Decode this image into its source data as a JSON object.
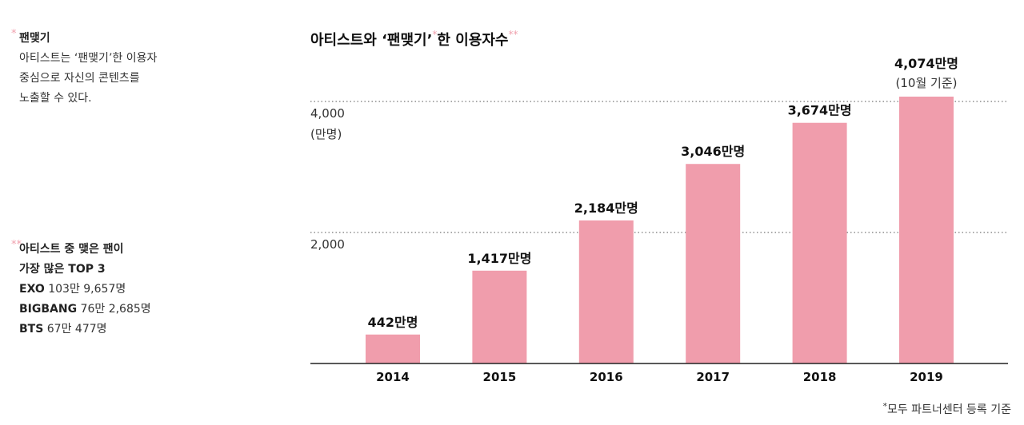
{
  "notes": {
    "fan_term": {
      "star": "*",
      "title": "팬맺기",
      "lines": [
        "아티스트는 ‘팬맺기’한 이용자",
        "중심으로 자신의 콘텐츠를",
        "노출할 수 있다."
      ]
    },
    "top3": {
      "star": "**",
      "title_lines": [
        "아티스트 중 맺은 팬이",
        "가장 많은 TOP 3"
      ],
      "items": [
        {
          "name": "EXO",
          "value": "103만 9,657명"
        },
        {
          "name": "BIGBANG",
          "value": "76만 2,685명"
        },
        {
          "name": "BTS",
          "value": "67만 477명"
        }
      ]
    }
  },
  "footnote": {
    "star": "*",
    "text": "모두 파트너센터 등록 기준"
  },
  "chart_data": {
    "type": "bar",
    "title_parts": {
      "before": "아티스트와 ‘팬맺기’",
      "star1": "*",
      "after": "한 이용자수",
      "star2": "**"
    },
    "categories": [
      "2014",
      "2015",
      "2016",
      "2017",
      "2018",
      "2019"
    ],
    "values": [
      442,
      1417,
      2184,
      3046,
      3674,
      4074
    ],
    "value_labels": [
      "442만명",
      "1,417만명",
      "2,184만명",
      "3,046만명",
      "3,674만명",
      "4,074만명"
    ],
    "value_sublabels": [
      "",
      "",
      "",
      "",
      "",
      "(10월 기준)"
    ],
    "yticks": [
      {
        "value": 2000,
        "label": "2,000"
      },
      {
        "value": 4000,
        "label": "4,000"
      }
    ],
    "yunit": "(만명)",
    "ylim": [
      0,
      4000
    ],
    "grid": "dotted",
    "colors": {
      "bar": "#f09dac",
      "grid": "#555555",
      "axis": "#222222"
    }
  }
}
